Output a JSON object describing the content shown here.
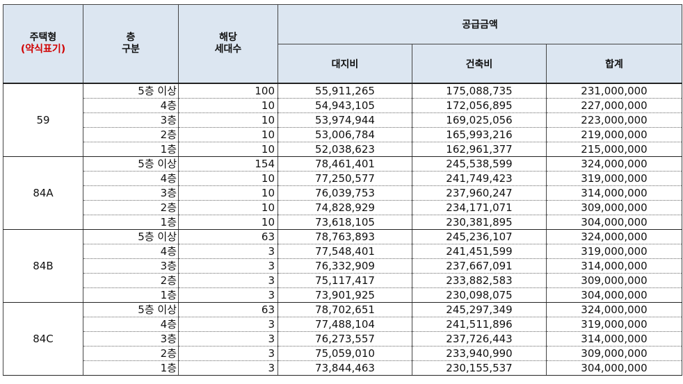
{
  "header": {
    "type_label": "주택형",
    "type_sub_label": "(약식표기)",
    "floor_label_1": "층",
    "floor_label_2": "구분",
    "households_label_1": "해당",
    "households_label_2": "세대수",
    "supply_label": "공급금액",
    "land_label": "대지비",
    "building_label": "건축비",
    "total_label": "합계"
  },
  "groups": [
    {
      "type": "59",
      "rows": [
        {
          "floor": "5층 이상",
          "households": "100",
          "land": "55,911,265",
          "building": "175,088,735",
          "total": "231,000,000"
        },
        {
          "floor": "4층",
          "households": "10",
          "land": "54,943,105",
          "building": "172,056,895",
          "total": "227,000,000"
        },
        {
          "floor": "3층",
          "households": "10",
          "land": "53,974,944",
          "building": "169,025,056",
          "total": "223,000,000"
        },
        {
          "floor": "2층",
          "households": "10",
          "land": "53,006,784",
          "building": "165,993,216",
          "total": "219,000,000"
        },
        {
          "floor": "1층",
          "households": "10",
          "land": "52,038,623",
          "building": "162,961,377",
          "total": "215,000,000"
        }
      ]
    },
    {
      "type": "84A",
      "rows": [
        {
          "floor": "5층 이상",
          "households": "154",
          "land": "78,461,401",
          "building": "245,538,599",
          "total": "324,000,000"
        },
        {
          "floor": "4층",
          "households": "10",
          "land": "77,250,577",
          "building": "241,749,423",
          "total": "319,000,000"
        },
        {
          "floor": "3층",
          "households": "10",
          "land": "76,039,753",
          "building": "237,960,247",
          "total": "314,000,000"
        },
        {
          "floor": "2층",
          "households": "10",
          "land": "74,828,929",
          "building": "234,171,071",
          "total": "309,000,000"
        },
        {
          "floor": "1층",
          "households": "10",
          "land": "73,618,105",
          "building": "230,381,895",
          "total": "304,000,000"
        }
      ]
    },
    {
      "type": "84B",
      "rows": [
        {
          "floor": "5층 이상",
          "households": "63",
          "land": "78,763,893",
          "building": "245,236,107",
          "total": "324,000,000"
        },
        {
          "floor": "4층",
          "households": "3",
          "land": "77,548,401",
          "building": "241,451,599",
          "total": "319,000,000"
        },
        {
          "floor": "3층",
          "households": "3",
          "land": "76,332,909",
          "building": "237,667,091",
          "total": "314,000,000"
        },
        {
          "floor": "2층",
          "households": "3",
          "land": "75,117,417",
          "building": "233,882,583",
          "total": "309,000,000"
        },
        {
          "floor": "1층",
          "households": "3",
          "land": "73,901,925",
          "building": "230,098,075",
          "total": "304,000,000"
        }
      ]
    },
    {
      "type": "84C",
      "rows": [
        {
          "floor": "5층 이상",
          "households": "63",
          "land": "78,702,651",
          "building": "245,297,349",
          "total": "324,000,000"
        },
        {
          "floor": "4층",
          "households": "3",
          "land": "77,488,104",
          "building": "241,511,896",
          "total": "319,000,000"
        },
        {
          "floor": "3층",
          "households": "3",
          "land": "76,273,557",
          "building": "237,726,443",
          "total": "314,000,000"
        },
        {
          "floor": "2층",
          "households": "3",
          "land": "75,059,010",
          "building": "233,940,990",
          "total": "309,000,000"
        },
        {
          "floor": "1층",
          "households": "3",
          "land": "73,844,463",
          "building": "230,155,537",
          "total": "304,000,000"
        }
      ]
    }
  ]
}
